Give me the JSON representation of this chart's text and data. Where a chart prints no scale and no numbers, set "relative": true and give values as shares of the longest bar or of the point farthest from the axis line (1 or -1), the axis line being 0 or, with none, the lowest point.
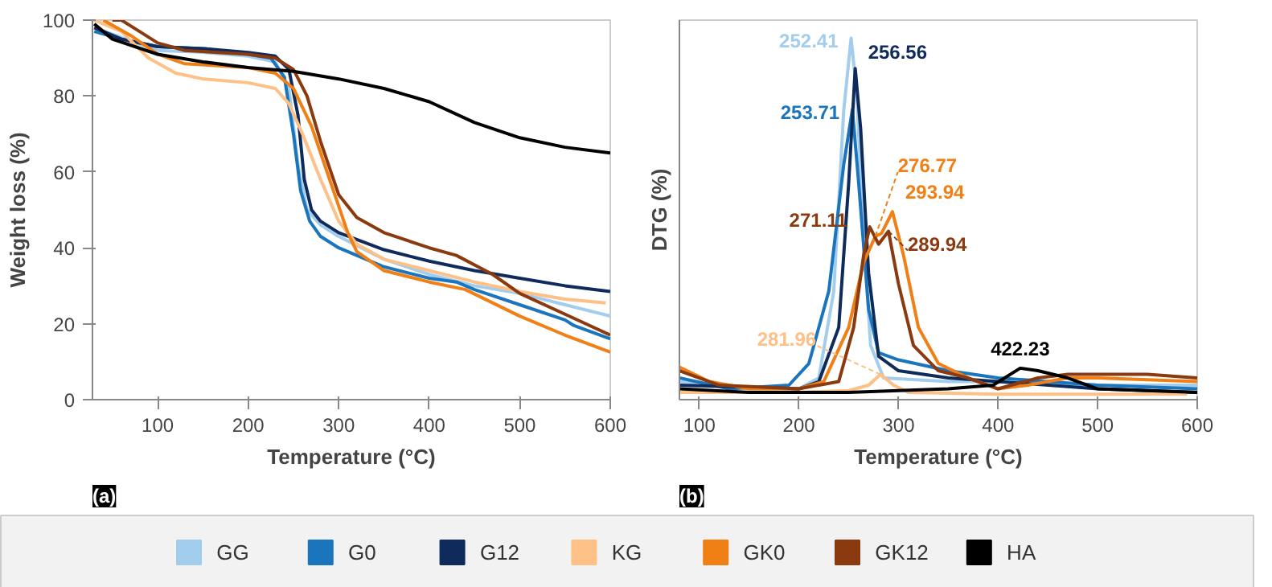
{
  "chart_data": [
    {
      "type": "line",
      "xlabel": "Temperature (°C)",
      "ylabel": "Weight loss (%)",
      "xlim": [
        28,
        600
      ],
      "ylim": [
        0,
        100
      ],
      "xticks": [
        100,
        200,
        300,
        400,
        500,
        600
      ],
      "yticks": [
        0,
        20,
        40,
        60,
        80,
        100
      ],
      "grid": false,
      "legend": "bottom",
      "annotations": [
        "(a)"
      ],
      "series": [
        {
          "name": "GG",
          "color": "#a3cdec",
          "x": [
            30,
            100,
            150,
            200,
            230,
            245,
            255,
            265,
            280,
            300,
            350,
            400,
            450,
            500,
            550,
            600
          ],
          "values": [
            98,
            92,
            91.5,
            90.5,
            89,
            82,
            62,
            50,
            46,
            43,
            37,
            33,
            30,
            28,
            25,
            22
          ]
        },
        {
          "name": "G0",
          "color": "#1b75bc",
          "x": [
            30,
            60,
            100,
            150,
            200,
            225,
            240,
            250,
            258,
            268,
            280,
            300,
            350,
            400,
            430,
            450,
            500,
            550,
            560,
            600
          ],
          "values": [
            97,
            95,
            93,
            92.5,
            91,
            90,
            85,
            70,
            55,
            47,
            43,
            40,
            35,
            32,
            31,
            29,
            25,
            21,
            19.5,
            16
          ]
        },
        {
          "name": "G12",
          "color": "#0e2b5c",
          "x": [
            30,
            60,
            100,
            150,
            200,
            230,
            245,
            255,
            262,
            270,
            280,
            300,
            350,
            400,
            450,
            500,
            550,
            600
          ],
          "values": [
            98,
            95,
            93,
            92.5,
            91.5,
            90.5,
            87,
            75,
            58,
            50,
            47,
            44,
            39.5,
            36.5,
            34,
            32,
            30,
            28.5
          ]
        },
        {
          "name": "KG",
          "color": "#fdc086",
          "x": [
            30,
            60,
            90,
            120,
            150,
            200,
            230,
            245,
            260,
            280,
            300,
            320,
            350,
            400,
            450,
            500,
            550,
            595
          ],
          "values": [
            100,
            97,
            90,
            86,
            84.5,
            83.5,
            82,
            78,
            70,
            58,
            47,
            41,
            37,
            34,
            31,
            28.5,
            26.5,
            25.5
          ]
        },
        {
          "name": "GK0",
          "color": "#f07f15",
          "x": [
            40,
            70,
            100,
            130,
            200,
            230,
            250,
            270,
            290,
            310,
            320,
            350,
            400,
            440,
            500,
            550,
            600
          ],
          "values": [
            100,
            96,
            91,
            88.5,
            87.5,
            86,
            82,
            72,
            58,
            44,
            39,
            34,
            31,
            29,
            22,
            17,
            12.5
          ]
        },
        {
          "name": "GK12",
          "color": "#8b3a0f",
          "x": [
            50,
            60,
            80,
            100,
            130,
            200,
            230,
            250,
            265,
            280,
            300,
            320,
            350,
            400,
            430,
            470,
            500,
            550,
            600
          ],
          "values": [
            100,
            100,
            97,
            94,
            92,
            91,
            90,
            87,
            80,
            68,
            54,
            48,
            44,
            40,
            38,
            33,
            28,
            22.5,
            17
          ]
        },
        {
          "name": "HA",
          "color": "#000000",
          "x": [
            30,
            50,
            100,
            150,
            200,
            250,
            300,
            350,
            400,
            450,
            500,
            550,
            600
          ],
          "values": [
            99,
            95,
            91,
            89,
            87.5,
            86.5,
            84.5,
            82,
            78.5,
            73,
            69,
            66.5,
            65
          ]
        }
      ]
    },
    {
      "type": "line",
      "xlabel": "Temperature (°C)",
      "ylabel": "DTG (%)",
      "xlim": [
        80,
        600
      ],
      "xticks": [
        100,
        200,
        300,
        400,
        500,
        600
      ],
      "relative": true,
      "grid": false,
      "annotations": [
        "(b)",
        {
          "text": "252.41",
          "x": 252.41,
          "y": 1.0
        },
        {
          "text": "256.56",
          "x": 256.56,
          "y": 0.916
        },
        {
          "text": "253.71",
          "x": 253.71,
          "y": 0.803
        },
        {
          "text": "276.77",
          "x": 276.77,
          "y": 0.452
        },
        {
          "text": "293.94",
          "x": 293.94,
          "y": 0.52
        },
        {
          "text": "271.11",
          "x": 271.11,
          "y": 0.478
        },
        {
          "text": "289.94",
          "x": 289.94,
          "y": 0.466
        },
        {
          "text": "281.96",
          "x": 281.96,
          "y": 0.07
        },
        {
          "text": "422.23",
          "x": 422.23,
          "y": 0.087
        }
      ],
      "series": [
        {
          "color": "#a3cdec",
          "x": [
            80,
            150,
            200,
            220,
            235,
            245,
            252.41,
            258,
            265,
            272,
            285,
            350,
            400,
            500,
            600
          ],
          "values": [
            0.05,
            0.03,
            0.03,
            0.06,
            0.3,
            0.8,
            1.0,
            0.85,
            0.45,
            0.15,
            0.06,
            0.05,
            0.05,
            0.04,
            0.04
          ]
        },
        {
          "color": "#1b75bc",
          "x": [
            80,
            130,
            190,
            210,
            230,
            245,
            253.71,
            260,
            270,
            280,
            300,
            350,
            400,
            450,
            500,
            600
          ],
          "values": [
            0.06,
            0.03,
            0.04,
            0.1,
            0.3,
            0.65,
            0.803,
            0.6,
            0.25,
            0.13,
            0.11,
            0.08,
            0.06,
            0.05,
            0.04,
            0.03
          ]
        },
        {
          "color": "#0e2b5c",
          "x": [
            80,
            200,
            220,
            240,
            250,
            256.56,
            262,
            270,
            280,
            300,
            350,
            400,
            500,
            600
          ],
          "values": [
            0.04,
            0.03,
            0.05,
            0.2,
            0.6,
            0.916,
            0.75,
            0.35,
            0.12,
            0.08,
            0.06,
            0.05,
            0.03,
            0.02
          ]
        },
        {
          "color": "#fdc086",
          "x": [
            80,
            200,
            250,
            270,
            281.96,
            295,
            310,
            400,
            590
          ],
          "values": [
            0.02,
            0.02,
            0.025,
            0.04,
            0.07,
            0.04,
            0.02,
            0.015,
            0.015
          ]
        },
        {
          "color": "#f07f15",
          "x": [
            80,
            110,
            150,
            200,
            225,
            250,
            265,
            276.77,
            283,
            293.94,
            305,
            320,
            340,
            370,
            400,
            430,
            470,
            500,
            600
          ],
          "values": [
            0.09,
            0.05,
            0.03,
            0.03,
            0.05,
            0.2,
            0.38,
            0.452,
            0.46,
            0.52,
            0.4,
            0.2,
            0.1,
            0.06,
            0.03,
            0.04,
            0.06,
            0.06,
            0.05
          ]
        },
        {
          "color": "#8b3a0f",
          "x": [
            80,
            120,
            200,
            240,
            255,
            265,
            271.11,
            280,
            289.94,
            300,
            315,
            340,
            370,
            400,
            440,
            470,
            500,
            550,
            600
          ],
          "values": [
            0.08,
            0.04,
            0.03,
            0.05,
            0.2,
            0.4,
            0.478,
            0.43,
            0.466,
            0.32,
            0.15,
            0.08,
            0.06,
            0.03,
            0.06,
            0.07,
            0.07,
            0.07,
            0.06
          ]
        },
        {
          "color": "#000000",
          "x": [
            80,
            150,
            250,
            350,
            395,
            422.23,
            440,
            470,
            500,
            600
          ],
          "values": [
            0.03,
            0.02,
            0.02,
            0.03,
            0.04,
            0.087,
            0.08,
            0.06,
            0.03,
            0.02
          ]
        }
      ]
    }
  ]
}
